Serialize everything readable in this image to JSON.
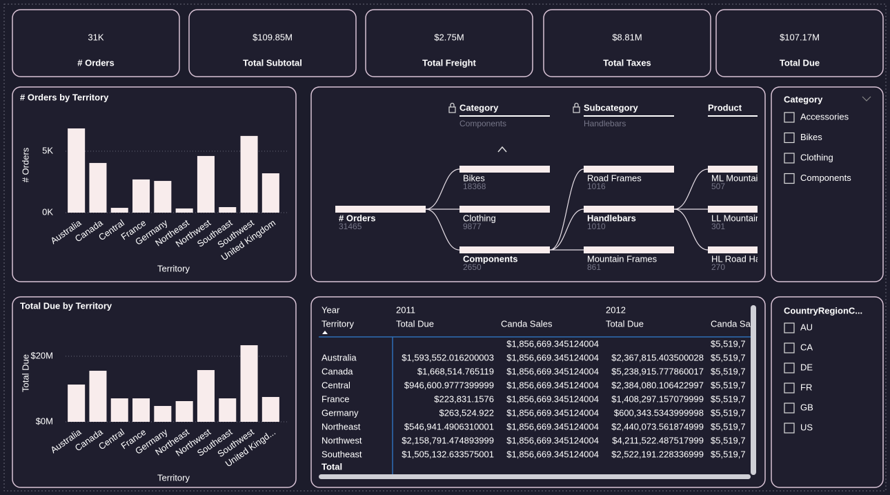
{
  "kpis": [
    {
      "value": "31K",
      "label": "# Orders"
    },
    {
      "value": "$109.85M",
      "label": "Total Subtotal"
    },
    {
      "value": "$2.75M",
      "label": "Total Freight"
    },
    {
      "value": "$8.81M",
      "label": "Total Taxes"
    },
    {
      "value": "$107.17M",
      "label": "Total Due"
    }
  ],
  "chart_data": [
    {
      "type": "bar",
      "title": "# Orders by Territory",
      "x_label": "Territory",
      "y_label": "# Orders",
      "categories": [
        "Australia",
        "Canada",
        "Central",
        "France",
        "Germany",
        "Northeast",
        "Northwest",
        "Southeast",
        "Southwest",
        "United Kingdom"
      ],
      "values": [
        6850,
        4040,
        390,
        2700,
        2580,
        340,
        4610,
        450,
        6240,
        3200
      ],
      "color": "#f8ecec",
      "ylim": [
        0,
        7750
      ],
      "yticks": [
        {
          "value": 0,
          "label": "0K"
        },
        {
          "value": 5000,
          "label": "5K"
        }
      ],
      "grid": true
    },
    {
      "type": "bar",
      "title": "Total Due by Territory",
      "x_label": "Territory",
      "y_label": "Total Due",
      "categories": [
        "Australia",
        "Canada",
        "Central",
        "France",
        "Germany",
        "Northeast",
        "Northwest",
        "Southeast",
        "Southwest",
        "United Kingd..."
      ],
      "values": [
        11370000,
        15580000,
        7160000,
        7160000,
        4840000,
        6320000,
        15790000,
        7160000,
        23370000,
        7580000
      ],
      "color": "#f8ecec",
      "ylim": [
        0,
        29700000
      ],
      "yticks": [
        {
          "value": 0,
          "label": "$0M"
        },
        {
          "value": 20000000,
          "label": "$20M"
        }
      ],
      "grid": true
    }
  ],
  "decomposition": {
    "levels": [
      {
        "name": "Category",
        "selected": "Components"
      },
      {
        "name": "Subcategory",
        "selected": "Handlebars"
      },
      {
        "name": "Product"
      }
    ],
    "root": {
      "label": "# Orders",
      "value": 31465
    },
    "columns": [
      [
        {
          "label": "Bikes",
          "value": 18368
        },
        {
          "label": "Clothing",
          "value": 9877
        },
        {
          "label": "Components",
          "value": 2650
        }
      ],
      [
        {
          "label": "Road Frames",
          "value": 1016
        },
        {
          "label": "Handlebars",
          "value": 1010
        },
        {
          "label": "Mountain Frames",
          "value": 861
        }
      ],
      [
        {
          "label": "ML Mountai",
          "value": 507
        },
        {
          "label": "LL Mountain",
          "value": 301
        },
        {
          "label": "HL Road Har",
          "value": 270
        }
      ]
    ]
  },
  "table": {
    "year_header": [
      "Year",
      "2011",
      "2012"
    ],
    "header": [
      "Territory",
      "Total Due",
      "Canda Sales",
      "Total Due",
      "Canda Sal"
    ],
    "rows": [
      [
        "",
        "",
        "$1,856,669.345124004",
        "",
        "$5,519,7"
      ],
      [
        "Australia",
        "$1,593,552.016200003",
        "$1,856,669.345124004",
        "$2,367,815.403500028",
        "$5,519,7"
      ],
      [
        "Canada",
        "$1,668,514.765119",
        "$1,856,669.345124004",
        "$5,238,915.777860017",
        "$5,519,7"
      ],
      [
        "Central",
        "$946,600.9777399999",
        "$1,856,669.345124004",
        "$2,384,080.106422997",
        "$5,519,7"
      ],
      [
        "France",
        "$223,831.1576",
        "$1,856,669.345124004",
        "$1,408,297.157079999",
        "$5,519,7"
      ],
      [
        "Germany",
        "$263,524.922",
        "$1,856,669.345124004",
        "$600,343.5343999998",
        "$5,519,7"
      ],
      [
        "Northeast",
        "$546,941.4906310001",
        "$1,856,669.345124004",
        "$2,440,073.561874999",
        "$5,519,7"
      ],
      [
        "Northwest",
        "$2,158,791.474893999",
        "$1,856,669.345124004",
        "$4,211,522.487517999",
        "$5,519,7"
      ],
      [
        "Southeast",
        "$1,505,132.633575001",
        "$1,856,669.345124004",
        "$2,522,191.228336999",
        "$5,519,7"
      ]
    ],
    "total_label": "Total"
  },
  "slicers": [
    {
      "title": "Category",
      "items": [
        "Accessories",
        "Bikes",
        "Clothing",
        "Components"
      ]
    },
    {
      "title": "CountryRegionC...",
      "items": [
        "AU",
        "CA",
        "DE",
        "FR",
        "GB",
        "US"
      ]
    }
  ]
}
